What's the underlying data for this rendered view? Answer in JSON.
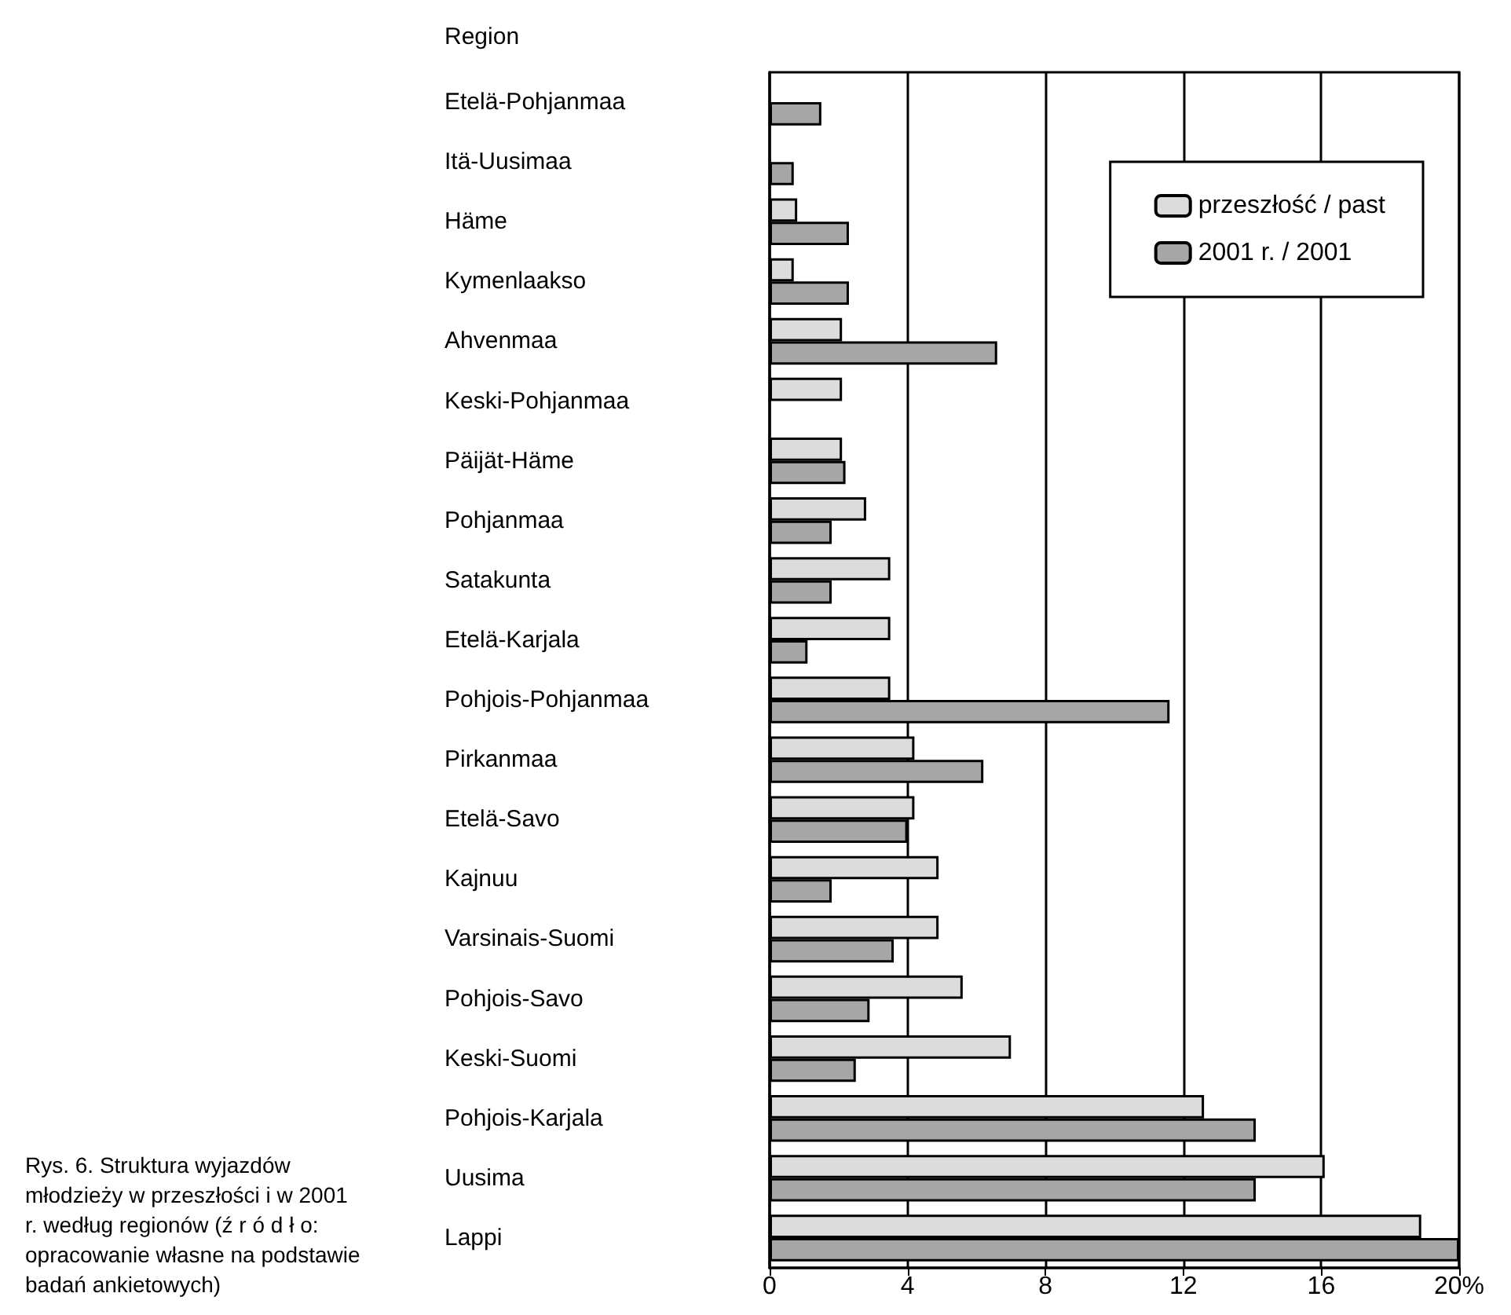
{
  "chart_data": {
    "type": "bar",
    "orientation": "horizontal",
    "ylabel": "Region",
    "categories": [
      "Etelä-Pohjanmaa",
      "Itä-Uusimaa",
      "Häme",
      "Kymenlaakso",
      "Ahvenmaa",
      "Keski-Pohjanmaa",
      "Päijät-Häme",
      "Pohjanmaa",
      "Satakunta",
      "Etelä-Karjala",
      "Pohjois-Pohjanmaa",
      "Pirkanmaa",
      "Etelä-Savo",
      "Kajnuu",
      "Varsinais-Suomi",
      "Pohjois-Savo",
      "Keski-Suomi",
      "Pohjois-Karjala",
      "Uusima",
      "Lappi"
    ],
    "series": [
      {
        "name": "przeszłość / past",
        "color": "#dcdcdc",
        "values": [
          0,
          0,
          0.8,
          0.7,
          2.1,
          2.1,
          2.1,
          2.8,
          3.5,
          3.5,
          3.5,
          4.2,
          4.2,
          4.9,
          4.9,
          5.6,
          7.0,
          12.6,
          16.1,
          18.9
        ]
      },
      {
        "name": "2001 r. / 2001",
        "color": "#a6a6a6",
        "values": [
          1.5,
          0.7,
          2.3,
          2.3,
          6.6,
          0,
          2.2,
          1.8,
          1.8,
          1.1,
          11.6,
          6.2,
          4.0,
          1.8,
          3.6,
          2.9,
          2.5,
          14.1,
          14.1,
          20.0
        ]
      }
    ],
    "xlim": [
      0,
      20
    ],
    "xticks": [
      0,
      4,
      8,
      12,
      16,
      {
        "value": 20,
        "label": "20%"
      }
    ],
    "grid": "x",
    "legend": "top right",
    "annotations": [
      "Rys. 6. Struktura wyjazdów młodzieży w przeszłości i w 2001 r. według regionów (ź r ó d ł o: opracowanie własne na podstawie badań ankietowych)"
    ]
  }
}
